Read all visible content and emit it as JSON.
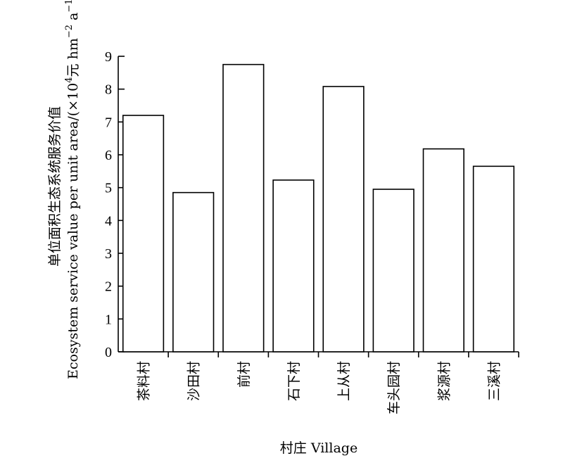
{
  "chart_data": {
    "type": "bar",
    "categories": [
      "茶料村",
      "沙田村",
      "前村",
      "石下村",
      "上从村",
      "车头园村",
      "浆源村",
      "三溪村"
    ],
    "values": [
      7.2,
      4.85,
      8.75,
      5.23,
      8.08,
      4.95,
      6.18,
      5.65
    ],
    "title": "",
    "xlabel": "村庄 Village",
    "ylabel_cn": "单位面积生态系统服务价值",
    "ylabel_en_prefix": "Ecosystem service value per unit area/(×10",
    "ylabel_en_exp1": "4",
    "ylabel_en_mid": "元 hm",
    "ylabel_en_exp2": "−2",
    "ylabel_en_mid2": " a",
    "ylabel_en_exp3": "−1",
    "ylabel_en_suffix": ")",
    "ylim": [
      0,
      9
    ],
    "yticks": [
      0,
      1,
      2,
      3,
      4,
      5,
      6,
      7,
      8,
      9
    ],
    "grid": false,
    "bar_fill": "#ffffff",
    "bar_stroke": "#000000"
  }
}
